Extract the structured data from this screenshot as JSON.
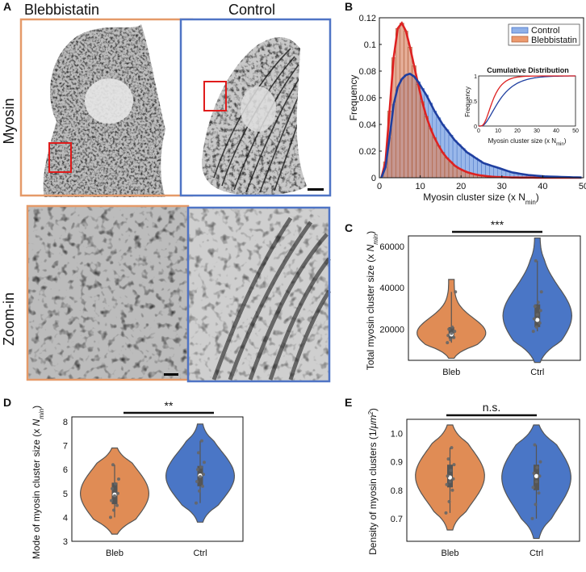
{
  "panel_labels": {
    "a": "A",
    "b": "B",
    "c": "C",
    "d": "D",
    "e": "E"
  },
  "panel_a": {
    "col_blebbistatin": "Blebbistatin",
    "col_control": "Control",
    "row_myosin": "Myosin",
    "row_zoom": "Zoom-in"
  },
  "colors": {
    "bleb": "#e08c55",
    "ctrl": "#4a76c6",
    "red_fit": "#dd2222",
    "blue_fit": "#1f3fa0",
    "box_orange": "#e59a69",
    "box_blue": "#4f74c5"
  },
  "chart_data": [
    {
      "id": "B",
      "type": "bar",
      "xlabel": "Myosin cluster size (x N",
      "xlabel_sub": "min",
      "xlabel_close": ")",
      "ylabel": "Frequency",
      "xlim": [
        0,
        50
      ],
      "ylim": [
        0,
        0.12
      ],
      "xticks": [
        "0",
        "10",
        "20",
        "30",
        "40",
        "50"
      ],
      "yticks": [
        "0",
        "0.02",
        "0.04",
        "0.06",
        "0.08",
        "0.1",
        "0.12"
      ],
      "legend": [
        "Control",
        "Blebbistatin"
      ],
      "bin_width": 1,
      "series": [
        {
          "name": "Control",
          "values": [
            0.0,
            0.008,
            0.03,
            0.055,
            0.068,
            0.074,
            0.077,
            0.078,
            0.076,
            0.072,
            0.067,
            0.062,
            0.056,
            0.05,
            0.045,
            0.04,
            0.036,
            0.032,
            0.028,
            0.025,
            0.022,
            0.019,
            0.017,
            0.015,
            0.013,
            0.011,
            0.01,
            0.009,
            0.008,
            0.007,
            0.006,
            0.005,
            0.004,
            0.0035,
            0.003,
            0.0025,
            0.002,
            0.0018,
            0.0015,
            0.0013,
            0.001,
            0.0009,
            0.0008,
            0.0007,
            0.0006,
            0.0005,
            0.0004,
            0.0003,
            0.0003,
            0.0002
          ]
        },
        {
          "name": "Blebbistatin",
          "values": [
            0.0,
            0.012,
            0.05,
            0.09,
            0.112,
            0.116,
            0.11,
            0.098,
            0.084,
            0.07,
            0.057,
            0.046,
            0.037,
            0.03,
            0.024,
            0.019,
            0.015,
            0.012,
            0.009,
            0.007,
            0.0055,
            0.0042,
            0.0033,
            0.0025,
            0.0019,
            0.0015,
            0.0011,
            0.0008,
            0.0006,
            0.0005,
            0.0004,
            0.0003,
            0.0002,
            0.0002,
            0.0001,
            0.0001,
            0.0001,
            0.0001,
            0.0,
            0.0,
            0.0,
            0.0,
            0.0,
            0.0,
            0.0,
            0.0,
            0.0,
            0.0,
            0.0,
            0.0
          ]
        }
      ],
      "inset": {
        "title": "Cumulative Distribution",
        "ylabel": "Frequency",
        "xlabel": "Myosin cluster size (x N",
        "xlabel_sub": "min",
        "xlabel_close": ")",
        "xticks": [
          "0",
          "10",
          "20",
          "30",
          "40",
          "50"
        ],
        "yticks": [
          "0",
          "0.5",
          "1"
        ]
      }
    },
    {
      "id": "C",
      "type": "violin",
      "categories": [
        "Bleb",
        "Ctrl"
      ],
      "ylabel": "Total myosin cluster size (x ",
      "ylabel_italic": "N",
      "ylabel_sub": "min",
      "ylabel_close": ")",
      "ylim": [
        5000,
        65000
      ],
      "yticks": [
        "20000",
        "40000",
        "60000"
      ],
      "significance": "***",
      "series": [
        {
          "name": "Bleb",
          "min": 6000,
          "max": 44000,
          "q1": 15500,
          "median": 17500,
          "q3": 21000,
          "points": [
            13500,
            15000,
            16000,
            17000,
            18000,
            19000,
            20000,
            21000,
            38000
          ]
        },
        {
          "name": "Ctrl",
          "min": 4000,
          "max": 64000,
          "q1": 21000,
          "median": 24500,
          "q3": 32000,
          "points": [
            19000,
            21000,
            23000,
            25000,
            27000,
            29000,
            31000,
            33000,
            38000,
            53000
          ]
        }
      ]
    },
    {
      "id": "D",
      "type": "violin",
      "categories": [
        "Bleb",
        "Ctrl"
      ],
      "ylabel": "Mode of myosin cluster size (x ",
      "ylabel_italic": "N",
      "ylabel_sub": "min",
      "ylabel_close": ")",
      "ylim": [
        3,
        8.2
      ],
      "yticks": [
        "3",
        "4",
        "5",
        "6",
        "7",
        "8"
      ],
      "significance": "**",
      "series": [
        {
          "name": "Bleb",
          "min": 3.3,
          "max": 6.9,
          "q1": 4.55,
          "median": 4.95,
          "q3": 5.45,
          "points": [
            4.0,
            4.3,
            4.5,
            4.7,
            4.9,
            5.0,
            5.2,
            5.4,
            5.6,
            6.2
          ]
        },
        {
          "name": "Ctrl",
          "min": 3.8,
          "max": 7.9,
          "q1": 5.3,
          "median": 5.75,
          "q3": 6.15,
          "points": [
            4.6,
            5.1,
            5.3,
            5.5,
            5.7,
            5.8,
            6.0,
            6.1,
            6.3,
            6.7,
            7.2
          ]
        }
      ]
    },
    {
      "id": "E",
      "type": "violin",
      "categories": [
        "Bleb",
        "Ctrl"
      ],
      "ylabel": "Density of myosin clusters (1/",
      "ylabel_italic": "μm",
      "ylabel_sup": "2",
      "ylabel_close": ")",
      "ylim": [
        0.62,
        1.05
      ],
      "yticks": [
        "0.7",
        "0.8",
        "0.9",
        "1.0"
      ],
      "significance": "n.s.",
      "series": [
        {
          "name": "Bleb",
          "min": 0.66,
          "max": 1.03,
          "q1": 0.81,
          "median": 0.845,
          "q3": 0.89,
          "points": [
            0.72,
            0.76,
            0.8,
            0.82,
            0.83,
            0.84,
            0.85,
            0.87,
            0.89,
            0.91,
            0.95
          ]
        },
        {
          "name": "Ctrl",
          "min": 0.63,
          "max": 1.03,
          "q1": 0.8,
          "median": 0.85,
          "q3": 0.89,
          "points": [
            0.7,
            0.75,
            0.79,
            0.81,
            0.83,
            0.85,
            0.86,
            0.88,
            0.9,
            0.96
          ]
        }
      ]
    }
  ]
}
